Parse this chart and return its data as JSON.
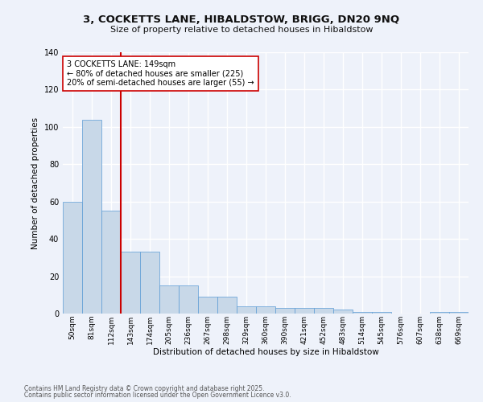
{
  "title1": "3, COCKETTS LANE, HIBALDSTOW, BRIGG, DN20 9NQ",
  "title2": "Size of property relative to detached houses in Hibaldstow",
  "xlabel": "Distribution of detached houses by size in Hibaldstow",
  "ylabel": "Number of detached properties",
  "categories": [
    "50sqm",
    "81sqm",
    "112sqm",
    "143sqm",
    "174sqm",
    "205sqm",
    "236sqm",
    "267sqm",
    "298sqm",
    "329sqm",
    "360sqm",
    "390sqm",
    "421sqm",
    "452sqm",
    "483sqm",
    "514sqm",
    "545sqm",
    "576sqm",
    "607sqm",
    "638sqm",
    "669sqm"
  ],
  "values": [
    60,
    104,
    55,
    33,
    33,
    15,
    15,
    9,
    9,
    4,
    4,
    3,
    3,
    3,
    2,
    1,
    1,
    0,
    0,
    1,
    1
  ],
  "bar_color": "#c8d8e8",
  "bar_edge_color": "#5b9bd5",
  "background_color": "#eef2fa",
  "grid_color": "#ffffff",
  "vline_x_index": 3,
  "vline_color": "#cc0000",
  "annotation_line1": "3 COCKETTS LANE: 149sqm",
  "annotation_line2": "← 80% of detached houses are smaller (225)",
  "annotation_line3": "20% of semi-detached houses are larger (55) →",
  "annotation_box_color": "#ffffff",
  "annotation_box_edge": "#cc0000",
  "ylim": [
    0,
    140
  ],
  "yticks": [
    0,
    20,
    40,
    60,
    80,
    100,
    120,
    140
  ],
  "footer1": "Contains HM Land Registry data © Crown copyright and database right 2025.",
  "footer2": "Contains public sector information licensed under the Open Government Licence v3.0."
}
